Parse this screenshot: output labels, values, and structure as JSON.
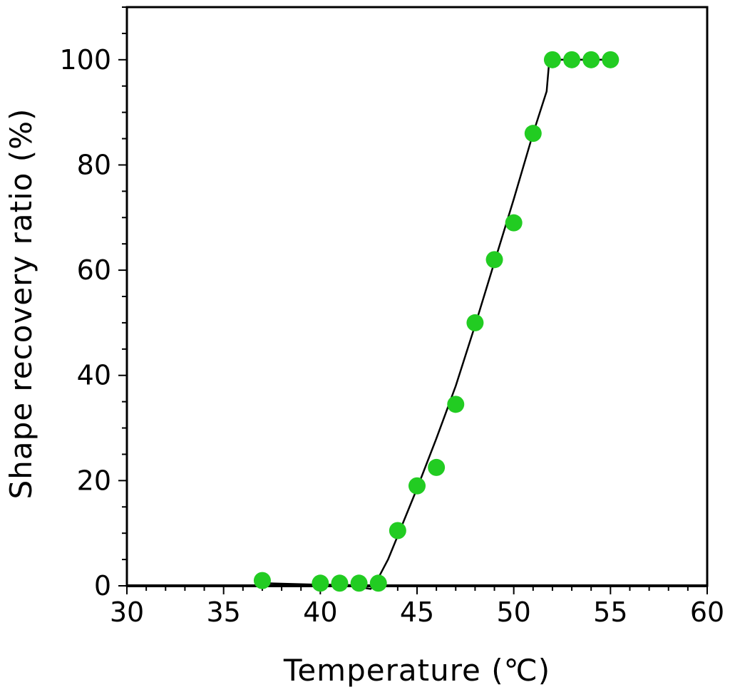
{
  "chart_data": {
    "type": "scatter",
    "title": "",
    "xlabel": "Temperature (℃)",
    "ylabel": "Shape recovery ratio (%)",
    "xlim": [
      30,
      60
    ],
    "ylim": [
      0,
      110
    ],
    "x_ticks": [
      30,
      35,
      40,
      45,
      50,
      55,
      60
    ],
    "y_ticks": [
      0,
      20,
      40,
      60,
      80,
      100
    ],
    "x_tick_labels": [
      "30",
      "35",
      "40",
      "45",
      "50",
      "55",
      "60"
    ],
    "y_tick_labels": [
      "0",
      "20",
      "40",
      "60",
      "80",
      "100"
    ],
    "grid": false,
    "legend": "none",
    "series": [
      {
        "type": "scatter",
        "color": "#22cc22",
        "x": [
          37,
          40,
          41,
          42,
          43,
          44,
          45,
          46,
          47,
          48,
          49,
          50,
          51,
          52,
          53,
          54,
          55
        ],
        "y": [
          1,
          0.5,
          0.5,
          0.5,
          0.5,
          10.5,
          19,
          22.5,
          34.5,
          50,
          62,
          69,
          86,
          100,
          100,
          100,
          100
        ]
      },
      {
        "type": "line",
        "color": "#000000",
        "x": [
          37,
          40,
          41,
          41.8,
          42.3,
          42.6,
          43,
          43.5,
          44,
          45,
          46,
          47,
          48,
          49,
          50,
          51,
          51.7,
          51.85,
          52,
          52.2,
          55
        ],
        "y": [
          0.5,
          0.2,
          0.2,
          0.1,
          -0.4,
          -0.6,
          1.5,
          5,
          9.5,
          18.5,
          28,
          38,
          49.5,
          61.5,
          73.5,
          86,
          94,
          100.5,
          101,
          100,
          100
        ]
      }
    ]
  }
}
